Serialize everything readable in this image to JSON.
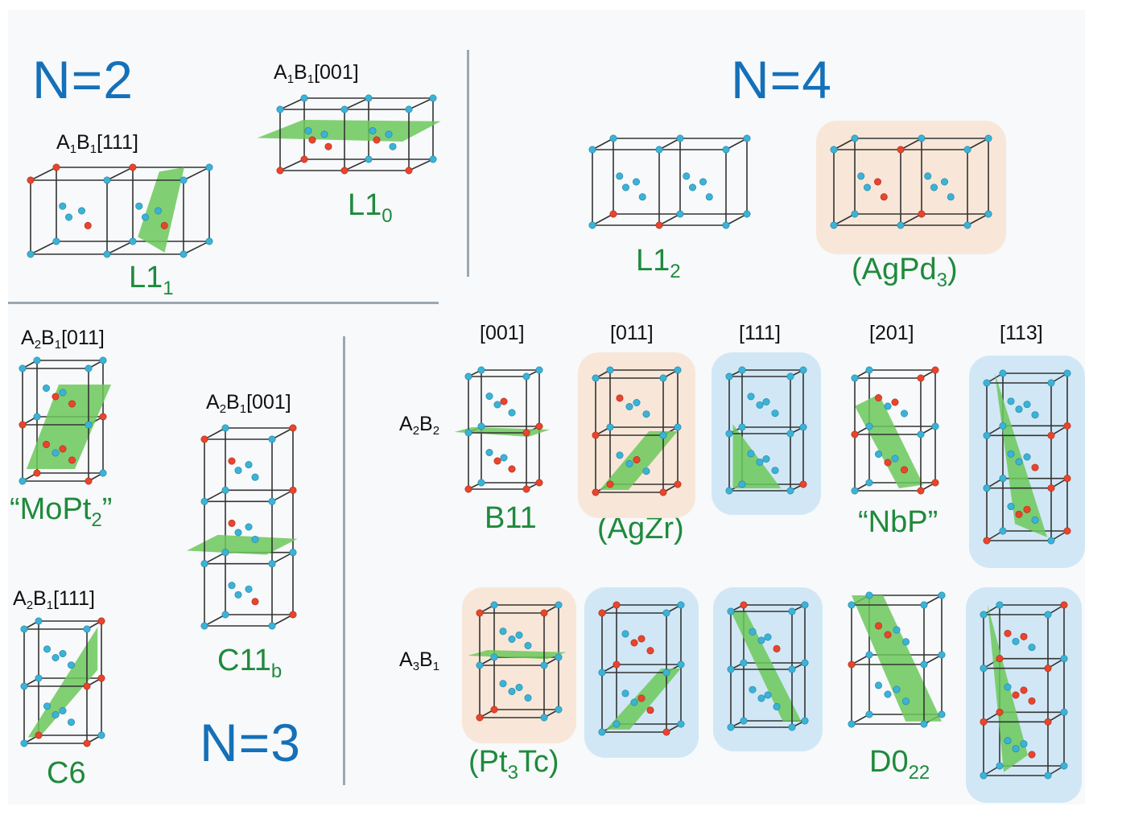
{
  "headers": {
    "n2": "N=2",
    "n3": "N=3",
    "n4": "N=4"
  },
  "n2": {
    "l11_formula": [
      "A",
      "1",
      "B",
      "1",
      "[111]"
    ],
    "l11_name": [
      "L1",
      "1"
    ],
    "l10_formula": [
      "A",
      "1",
      "B",
      "1",
      "[001]"
    ],
    "l10_name": [
      "L1",
      "0"
    ]
  },
  "n4": {
    "l12_name": [
      "L1",
      "2"
    ],
    "agpd3_name": [
      "(AgPd",
      "3",
      ")"
    ]
  },
  "n3": {
    "mopt2_formula": [
      "A",
      "2",
      "B",
      "1",
      "[011]"
    ],
    "mopt2_name": [
      "“MoPt",
      "2",
      "”"
    ],
    "c6_formula": [
      "A",
      "2",
      "B",
      "1",
      "[111]"
    ],
    "c6_name": "C6",
    "c11b_formula": [
      "A",
      "2",
      "B",
      "1",
      "[001]"
    ],
    "c11b_name": [
      "C11",
      "b"
    ]
  },
  "grid": {
    "directions": [
      "[001]",
      "[011]",
      "[111]",
      "[201]",
      "[113]"
    ],
    "row_a2b2": [
      "A",
      "2",
      "B",
      "2"
    ],
    "row_a3b1": [
      "A",
      "3",
      "B",
      "1"
    ],
    "a2b2_names": [
      "B11",
      "(AgZr)",
      "",
      "“NbP”",
      ""
    ],
    "a3b1_names": [
      [
        "(Pt",
        "3",
        "Tc)"
      ],
      "",
      "",
      "",
      [
        "D0",
        "22"
      ]
    ]
  },
  "colors": {
    "header_blue": "#1570b8",
    "structure_green": "#1f8a3c",
    "atom_a_red": "#e8452c",
    "atom_b_cyan": "#3bb3d6",
    "plane_green": "#6cc85a",
    "highlight_orange": "#f8e6d6",
    "highlight_blue": "#cfe6f4"
  }
}
